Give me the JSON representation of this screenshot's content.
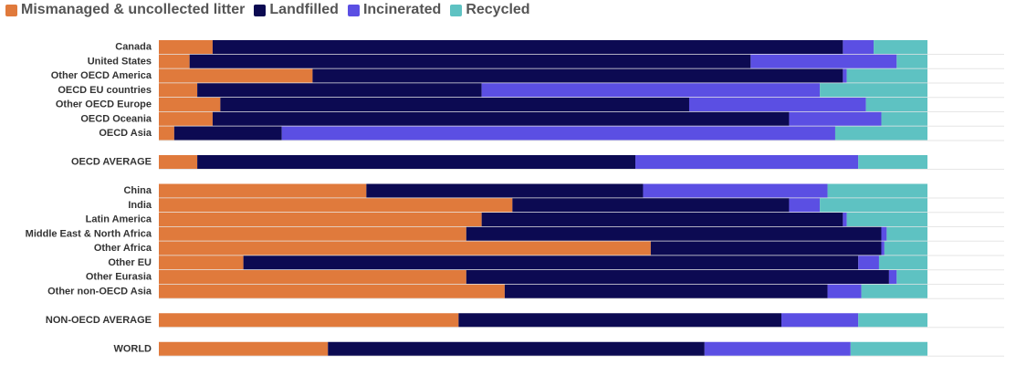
{
  "legend": [
    {
      "name": "Mismanaged & uncollected litter",
      "color": "#E07A3C"
    },
    {
      "name": "Landfilled",
      "color": "#0C0A52"
    },
    {
      "name": "Incinerated",
      "color": "#5B4FE3"
    },
    {
      "name": "Recycled",
      "color": "#5EC2C2"
    }
  ],
  "chart_data": {
    "type": "bar",
    "orientation": "horizontal",
    "stacked": true,
    "normalized": true,
    "xlim": [
      0,
      100
    ],
    "grid": true,
    "legend_position": "top-left",
    "categories": [
      "Canada",
      "United States",
      "Other OECD America",
      "OECD EU countries",
      "Other OECD Europe",
      "OECD Oceania",
      "OECD Asia",
      "OECD AVERAGE",
      "China",
      "India",
      "Latin America",
      "Middle East & North Africa",
      "Other Africa",
      "Other EU",
      "Other Eurasia",
      "Other non-OECD Asia",
      "NON-OECD AVERAGE",
      "WORLD"
    ],
    "groups": [
      7,
      1,
      8,
      1,
      1
    ],
    "series": [
      {
        "name": "Mismanaged & uncollected litter",
        "color": "#E07A3C",
        "values": [
          7,
          4,
          20,
          5,
          8,
          7,
          2,
          5,
          27,
          46,
          42,
          40,
          64,
          11,
          40,
          45,
          39,
          22
        ]
      },
      {
        "name": "Landfilled",
        "color": "#0C0A52",
        "values": [
          82,
          73,
          69,
          37,
          61,
          75,
          14,
          57,
          36,
          36,
          47,
          54,
          30,
          80,
          55,
          42,
          42,
          49
        ]
      },
      {
        "name": "Incinerated",
        "color": "#5B4FE3",
        "values": [
          4,
          19,
          0.5,
          44,
          23,
          12,
          72,
          29,
          24,
          4,
          0.5,
          0.7,
          0.4,
          2.7,
          1,
          4.4,
          10,
          19
        ]
      },
      {
        "name": "Recycled",
        "color": "#5EC2C2",
        "values": [
          7,
          4,
          10.5,
          14,
          8,
          6,
          12,
          9,
          13,
          14,
          10.5,
          5.3,
          5.6,
          6.3,
          4,
          8.6,
          9,
          10
        ]
      }
    ]
  }
}
